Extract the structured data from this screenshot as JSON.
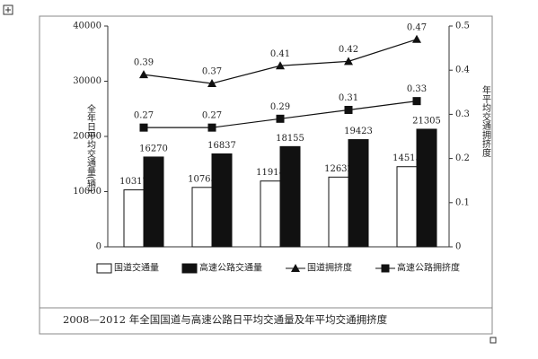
{
  "chart_data": {
    "type": "bar",
    "ylabel": "全年日平均交通量(辆)",
    "y2label": "年平均交通拥挤度",
    "categories": [
      null,
      null,
      null,
      null,
      null
    ],
    "ylim": [
      0,
      40000
    ],
    "yticks": [
      0,
      10000,
      20000,
      30000,
      40000
    ],
    "y2lim": [
      0,
      0.5
    ],
    "y2ticks": [
      0,
      0.1,
      0.2,
      0.3,
      0.4,
      0.5
    ],
    "series": [
      {
        "name": "国道交通量",
        "type": "bar",
        "color": "#ffffff",
        "values": [
          10317,
          10765,
          11918,
          12632,
          14515
        ]
      },
      {
        "name": "高速公路交通量",
        "type": "bar",
        "color": "#111111",
        "values": [
          16270,
          16837,
          18155,
          19423,
          21305
        ]
      },
      {
        "name": "国道拥挤度",
        "type": "line",
        "marker": "triangle",
        "axis": "y2",
        "color": "#111111",
        "values": [
          0.39,
          0.37,
          0.41,
          0.42,
          0.47
        ]
      },
      {
        "name": "高速公路拥挤度",
        "type": "line",
        "marker": "square",
        "axis": "y2",
        "color": "#111111",
        "values": [
          0.27,
          0.27,
          0.29,
          0.31,
          0.33
        ]
      }
    ],
    "legend": "bottom"
  },
  "caption": "2008—2012 年全国国道与高速公路日平均交通量及年平均交通拥挤度"
}
